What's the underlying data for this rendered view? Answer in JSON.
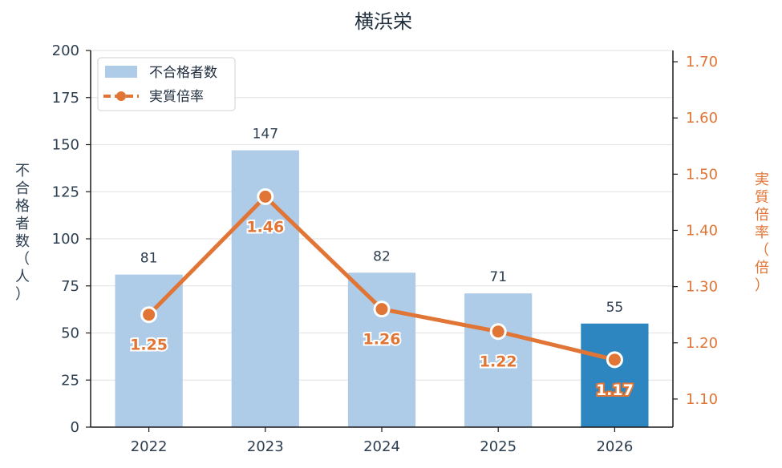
{
  "colors": {
    "bar": "#aecbe8",
    "bar_highlight": "#2e86c1",
    "line": "#e07535",
    "axis_text": "#2c3e50",
    "grid": "#e6e6e6"
  },
  "chart_data": {
    "type": "bar",
    "title": "横浜栄",
    "categories": [
      "2022",
      "2023",
      "2024",
      "2025",
      "2026"
    ],
    "series": [
      {
        "name": "不合格者数",
        "type": "bar",
        "axis": "left",
        "values": [
          81,
          147,
          82,
          71,
          55
        ],
        "highlight_index": 4
      },
      {
        "name": "実質倍率",
        "type": "line",
        "axis": "right",
        "values": [
          1.25,
          1.46,
          1.26,
          1.22,
          1.17
        ],
        "labels": [
          "1.25",
          "1.46",
          "1.26",
          "1.22",
          "1.17"
        ],
        "highlight_index": 4
      }
    ],
    "ylabel": "不合格者数（人）",
    "ylim": [
      0,
      200
    ],
    "yticks": [
      "0",
      "25",
      "50",
      "75",
      "100",
      "125",
      "150",
      "175",
      "200"
    ],
    "y2label": "実質倍率（倍）",
    "y2lim": [
      1.05,
      1.72
    ],
    "y2ticks": [
      "1.10",
      "1.20",
      "1.30",
      "1.40",
      "1.50",
      "1.60",
      "1.70"
    ],
    "grid": true,
    "legend": "top-left"
  }
}
